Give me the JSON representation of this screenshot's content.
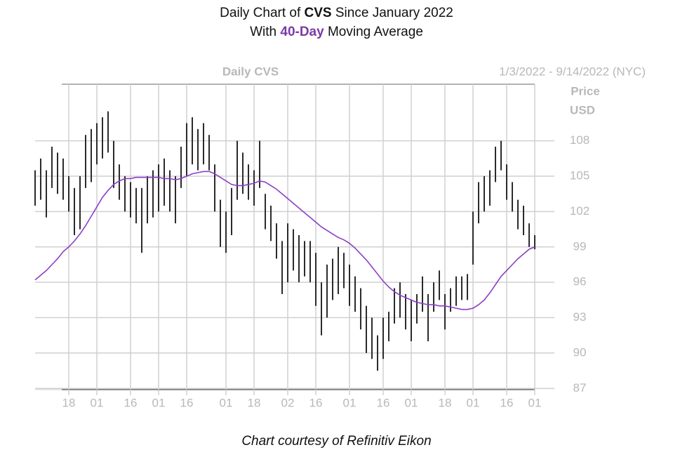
{
  "chart_data": {
    "type": "hilo",
    "title": {
      "prefix": "Daily Chart of ",
      "emphasis": "CVS",
      "suffix": " Since January 2022"
    },
    "subtitle": {
      "prefix": "With ",
      "emphasis": "40-Day",
      "suffix": " Moving Average"
    },
    "panel_title": "Daily CVS",
    "date_range": "1/3/2022 - 9/14/2022 (NYC)",
    "axis_label": [
      "Price",
      "USD"
    ],
    "footer": "Chart courtesy of Refinitiv Eikon",
    "categories": [
      null,
      null,
      null,
      null,
      null,
      null,
      "18",
      null,
      null,
      null,
      null,
      "01",
      null,
      null,
      null,
      null,
      null,
      "16",
      null,
      null,
      null,
      null,
      "01",
      null,
      null,
      null,
      null,
      "16",
      null,
      null,
      null,
      null,
      null,
      null,
      "01",
      null,
      null,
      null,
      null,
      "18",
      null,
      null,
      null,
      null,
      null,
      "02",
      null,
      null,
      null,
      null,
      "16",
      null,
      null,
      null,
      null,
      null,
      "01",
      null,
      null,
      null,
      null,
      null,
      "16",
      null,
      null,
      null,
      null,
      "01",
      null,
      null,
      null,
      null,
      null,
      "18",
      null,
      null,
      null,
      null,
      "01",
      null,
      null,
      null,
      null,
      null,
      "16",
      null,
      null,
      null,
      null,
      "01"
    ],
    "high": [
      105.5,
      106.5,
      105.5,
      107.5,
      107,
      106.5,
      105,
      104,
      105,
      108.5,
      109,
      109.5,
      110,
      110.5,
      108,
      106,
      105,
      104.5,
      104,
      104,
      105,
      105.5,
      106,
      106.5,
      105.5,
      105,
      107.5,
      109.5,
      110,
      109,
      109.5,
      108.5,
      106,
      103,
      102,
      104,
      108,
      107,
      106,
      105.5,
      108,
      103.5,
      102.5,
      101,
      99.5,
      101,
      100.5,
      100,
      99.5,
      99.5,
      98.5,
      96,
      97.5,
      98,
      99,
      98.5,
      97.5,
      96.5,
      95.5,
      94,
      93,
      91.5,
      93,
      93.5,
      95.5,
      96,
      95,
      94.5,
      95,
      96.5,
      95,
      96,
      97,
      95,
      95.5,
      96.5,
      96.5,
      96.7,
      102,
      104.5,
      105,
      105.5,
      107.5,
      108,
      106,
      104.5,
      103,
      102.5,
      101,
      100
    ],
    "low": [
      102.5,
      103,
      101.5,
      104,
      103.5,
      103,
      102,
      100,
      100.5,
      104,
      104.5,
      106,
      106.5,
      107,
      104,
      103,
      102,
      101.5,
      101,
      98.5,
      101,
      101.5,
      102,
      102.5,
      102,
      101,
      104,
      105,
      106,
      105.5,
      106,
      105.5,
      102,
      99,
      98.5,
      100,
      103,
      103.5,
      103,
      102.5,
      104,
      100.5,
      99.5,
      98,
      95,
      96,
      97,
      96,
      96.5,
      96,
      94,
      91.5,
      93,
      94.5,
      95,
      95.5,
      94,
      93.5,
      92,
      90,
      89.5,
      88.5,
      89.5,
      91,
      92.5,
      93,
      92,
      91,
      92.5,
      93.5,
      91,
      93.5,
      94.5,
      92,
      93.5,
      94,
      94.5,
      94.5,
      97.5,
      101,
      102,
      102.5,
      104.5,
      105.5,
      103,
      102,
      100.5,
      100,
      99,
      98.8
    ],
    "bar_color": "#2b2b2b",
    "moving_average": {
      "color": "#8b3fc8",
      "values": [
        96.2,
        96.6,
        97.0,
        97.5,
        98.0,
        98.6,
        99.0,
        99.5,
        100.1,
        100.8,
        101.6,
        102.4,
        103.2,
        103.8,
        104.3,
        104.6,
        104.8,
        104.8,
        104.9,
        104.9,
        104.9,
        104.9,
        104.9,
        104.8,
        104.8,
        104.7,
        104.8,
        105.0,
        105.2,
        105.3,
        105.4,
        105.4,
        105.2,
        104.9,
        104.6,
        104.3,
        104.2,
        104.2,
        104.3,
        104.4,
        104.6,
        104.5,
        104.2,
        103.9,
        103.5,
        103.1,
        102.7,
        102.3,
        101.9,
        101.5,
        101.1,
        100.7,
        100.4,
        100.1,
        99.8,
        99.6,
        99.3,
        98.9,
        98.4,
        97.9,
        97.3,
        96.7,
        96.1,
        95.6,
        95.2,
        94.9,
        94.7,
        94.5,
        94.3,
        94.2,
        94.1,
        94.1,
        94.0,
        94.0,
        93.9,
        93.8,
        93.7,
        93.7,
        93.8,
        94.1,
        94.5,
        95.1,
        95.8,
        96.5,
        97.0,
        97.5,
        98.0,
        98.4,
        98.8,
        99.0
      ]
    },
    "ylim": [
      86.9,
      112.8
    ],
    "yticks": [
      87,
      90,
      93,
      96,
      99,
      102,
      105,
      108
    ],
    "grid": true
  }
}
